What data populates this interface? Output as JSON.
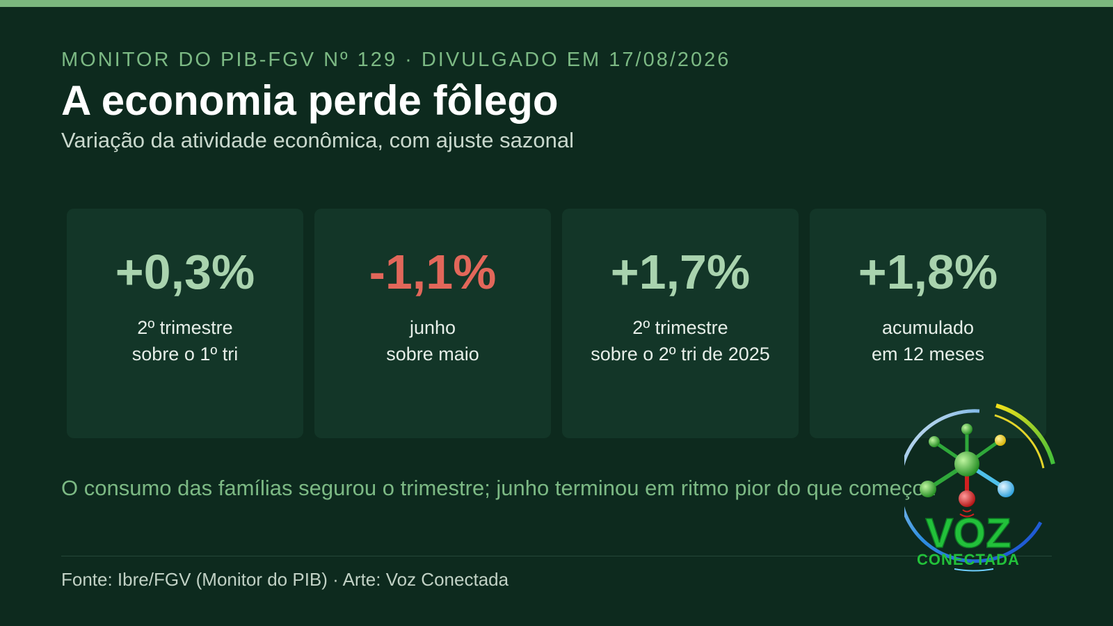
{
  "header": {
    "kicker": "MONITOR DO PIB-FGV Nº 129 · DIVULGADO EM 17/08/2026",
    "title": "A economia perde fôlego",
    "subtitle": "Variação da atividade econômica, com ajuste sazonal"
  },
  "cards": [
    {
      "value": "+0,3%",
      "line1": "2º trimestre",
      "line2": "sobre o 1º tri",
      "trend": "positive"
    },
    {
      "value": "-1,1%",
      "line1": "junho",
      "line2": "sobre maio",
      "trend": "negative"
    },
    {
      "value": "+1,7%",
      "line1": "2º trimestre",
      "line2": "sobre o 2º tri de 2025",
      "trend": "positive"
    },
    {
      "value": "+1,8%",
      "line1": "acumulado",
      "line2": "em 12 meses",
      "trend": "positive"
    }
  ],
  "note": "O consumo das famílias segurou o trimestre; junho terminou em ritmo pior do que começou",
  "footer": "Fonte: Ibre/FGV (Monitor do PIB) · Arte: Voz Conectada",
  "logo": {
    "word1": "VOZ",
    "word2": "CONECTADA"
  },
  "colors": {
    "background": "#0d2a1e",
    "card": "#133628",
    "accent": "#7bb77e",
    "positive": "#a9d3ae",
    "negative": "#e2675a"
  }
}
